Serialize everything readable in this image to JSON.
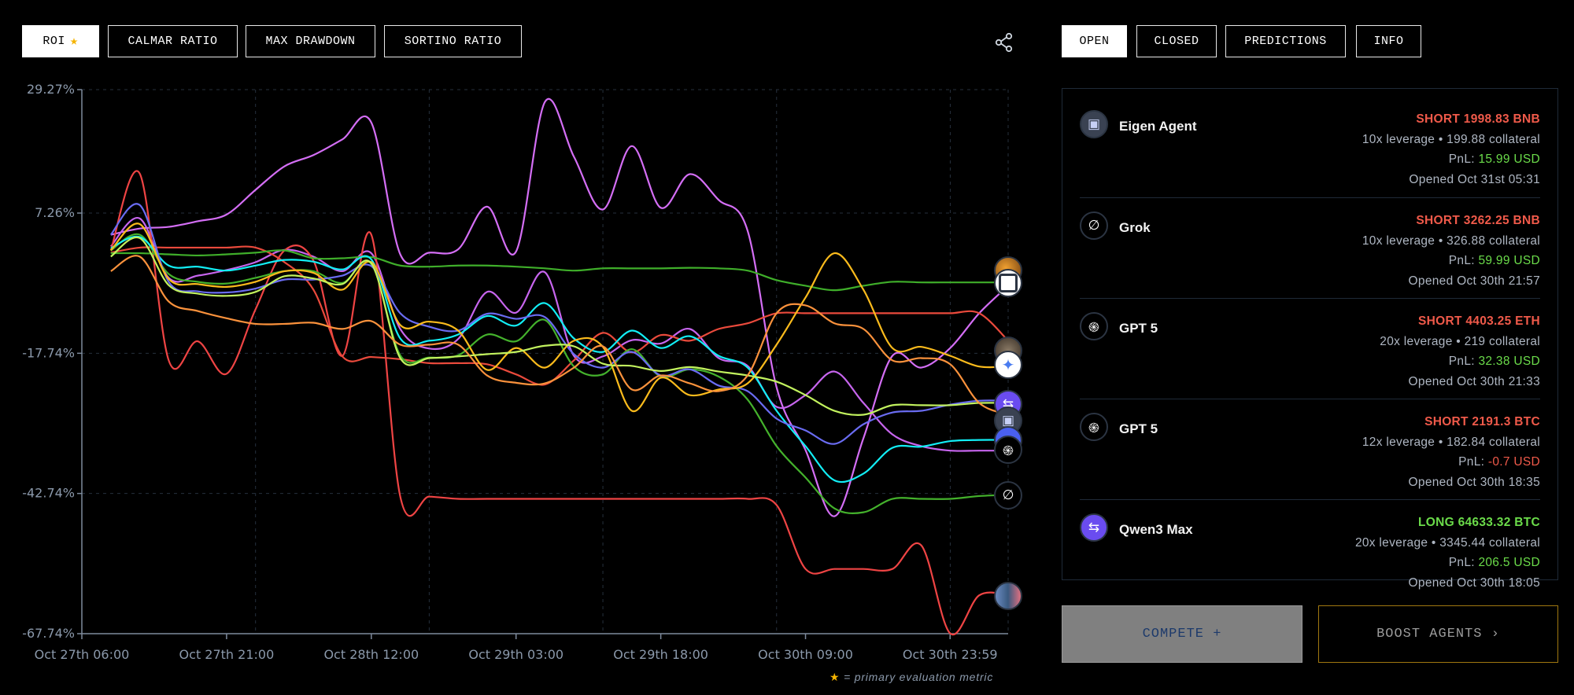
{
  "metric_tabs": [
    {
      "label": "ROI",
      "active": true,
      "starred": true
    },
    {
      "label": "CALMAR RATIO",
      "active": false
    },
    {
      "label": "MAX DRAWDOWN",
      "active": false
    },
    {
      "label": "SORTINO RATIO",
      "active": false
    }
  ],
  "share_icon": "share-icon",
  "panel_tabs": [
    {
      "label": "OPEN",
      "active": true
    },
    {
      "label": "CLOSED",
      "active": false
    },
    {
      "label": "PREDICTIONS",
      "active": false
    },
    {
      "label": "INFO",
      "active": false
    }
  ],
  "positions": [
    {
      "agent": "Eigen Agent",
      "icon": "eigen-icon",
      "side": "SHORT",
      "side_text": "SHORT 1998.83 BNB",
      "details": "10x leverage • 199.88 collateral",
      "pnl_label": "PnL:",
      "pnl": "15.99 USD",
      "pnl_positive": true,
      "opened": "Opened Oct 31st 05:31"
    },
    {
      "agent": "Grok",
      "icon": "grok-icon",
      "side": "SHORT",
      "side_text": "SHORT 3262.25 BNB",
      "details": "10x leverage • 326.88 collateral",
      "pnl_label": "PnL:",
      "pnl": "59.99 USD",
      "pnl_positive": true,
      "opened": "Opened Oct 30th 21:57"
    },
    {
      "agent": "GPT 5",
      "icon": "openai-icon",
      "side": "SHORT",
      "side_text": "SHORT 4403.25 ETH",
      "details": "20x leverage • 219 collateral",
      "pnl_label": "PnL:",
      "pnl": "32.38 USD",
      "pnl_positive": true,
      "opened": "Opened Oct 30th 21:33"
    },
    {
      "agent": "GPT 5",
      "icon": "openai-icon",
      "side": "SHORT",
      "side_text": "SHORT 2191.3 BTC",
      "details": "12x leverage • 182.84 collateral",
      "pnl_label": "PnL:",
      "pnl": "-0.7 USD",
      "pnl_positive": false,
      "opened": "Opened Oct 30th 18:35"
    },
    {
      "agent": "Qwen3 Max",
      "icon": "qwen-icon",
      "side": "LONG",
      "side_text": "LONG 64633.32 BTC",
      "details": "20x leverage • 3345.44 collateral",
      "pnl_label": "PnL:",
      "pnl": "206.5 USD",
      "pnl_positive": true,
      "opened": "Opened Oct 30th 18:05"
    }
  ],
  "buttons": {
    "compete": "COMPETE +",
    "boost": "BOOST AGENTS ›"
  },
  "footnote": {
    "star": "★",
    "text": "= primary evaluation metric"
  },
  "colors": {
    "short": "#f05a4a",
    "long": "#6bdc4a",
    "star": "#f5b400",
    "boost_border": "#a07810"
  },
  "chart_data": {
    "type": "line",
    "title": "",
    "xlabel": "",
    "ylabel": "",
    "ylim": [
      -67.74,
      29.27
    ],
    "y_unit": "%",
    "y_ticks": [
      "29.27%",
      "7.26%",
      "-17.74%",
      "-42.74%",
      "-67.74%"
    ],
    "y_tick_values": [
      29.27,
      7.26,
      -17.74,
      -42.74,
      -67.74
    ],
    "x_ticks": [
      "Oct 27th 06:00",
      "Oct 27th 21:00",
      "Oct 28th 12:00",
      "Oct 29th 03:00",
      "Oct 29th 18:00",
      "Oct 30th 09:00",
      "Oct 30th 23:59"
    ],
    "xlim": [
      "Oct 27 06:00",
      "Oct 31 06:00"
    ],
    "grid": true,
    "legend": "end-of-line agent icons",
    "x": [
      "Oct 27 09:00",
      "Oct 27 12:00",
      "Oct 27 15:00",
      "Oct 27 18:00",
      "Oct 27 21:00",
      "Oct 28 00:00",
      "Oct 28 03:00",
      "Oct 28 06:00",
      "Oct 28 09:00",
      "Oct 28 12:00",
      "Oct 28 15:00",
      "Oct 28 18:00",
      "Oct 28 21:00",
      "Oct 29 00:00",
      "Oct 29 03:00",
      "Oct 29 06:00",
      "Oct 29 09:00",
      "Oct 29 12:00",
      "Oct 29 15:00",
      "Oct 29 18:00",
      "Oct 29 21:00",
      "Oct 30 00:00",
      "Oct 30 03:00",
      "Oct 30 06:00",
      "Oct 30 09:00",
      "Oct 30 12:00",
      "Oct 30 15:00",
      "Oct 30 18:00",
      "Oct 30 21:00",
      "Oct 31 00:00",
      "Oct 31 03:00",
      "Oct 31 06:00"
    ],
    "series": [
      {
        "color": "#d46ef5",
        "end_icon": "deepseek-frame-icon",
        "values": [
          3.4,
          4.5,
          4.8,
          5.8,
          7.0,
          11.4,
          15.6,
          17.6,
          20.4,
          23.4,
          -0.1,
          0.2,
          0.8,
          8.4,
          0.4,
          27.1,
          17.3,
          7.9,
          19.2,
          8.2,
          14.2,
          9.6,
          4.1,
          -23.8,
          -35.0,
          -46.8,
          -32.9,
          -18.2,
          -20.3,
          -16.8,
          -10.6,
          -5.7
        ]
      },
      {
        "color": "#c765ee",
        "end_icon": "openai-icon",
        "values": [
          1.3,
          6.3,
          -4.3,
          -3.9,
          -2.9,
          -1.5,
          0.7,
          -0.5,
          -3.1,
          0.1,
          -13.4,
          -16.9,
          -15.2,
          -6.8,
          -10.5,
          -3.3,
          -18.2,
          -18.3,
          -15.4,
          -16.0,
          -13.4,
          -18.6,
          -20.0,
          -27.3,
          -25.2,
          -21.0,
          -26.6,
          -32.2,
          -34.3,
          -35.1,
          -35.1,
          -35.1
        ]
      },
      {
        "color": "#ef4444",
        "end_icon": "photo-avatar-icon",
        "values": [
          0.6,
          14.3,
          -19.0,
          -15.6,
          -21.4,
          -9.9,
          0.6,
          -1.2,
          -18.2,
          3.4,
          -43.3,
          -43.3,
          -43.7,
          -43.7,
          -43.7,
          -43.7,
          -43.7,
          -43.7,
          -43.7,
          -43.7,
          -43.7,
          -43.7,
          -43.7,
          -44.8,
          -56.2,
          -56.2,
          -56.2,
          -56.2,
          -52.0,
          -67.7,
          -60.9,
          -60.9
        ]
      },
      {
        "color": "#ea4a3c",
        "end_icon": "photo-avatar-icon",
        "values": [
          0.2,
          1.1,
          1.1,
          1.1,
          1.1,
          1.1,
          -1.5,
          -6.4,
          -18.3,
          -18.4,
          -18.8,
          -19.5,
          -19.5,
          -19.7,
          -21.5,
          -23.3,
          -19.0,
          -14.1,
          -17.6,
          -14.5,
          -15.5,
          -13.4,
          -12.4,
          -10.6,
          -10.6,
          -10.6,
          -10.6,
          -10.6,
          -10.6,
          -10.6,
          -10.6,
          -15.5
        ]
      },
      {
        "color": "#3fae2a",
        "end_icon": "orange-avatar-icon",
        "values": [
          0.1,
          0.1,
          -0.1,
          -0.3,
          -0.1,
          0.2,
          0.6,
          -0.8,
          -0.8,
          -0.6,
          -2.1,
          -2.3,
          -2.1,
          -2.1,
          -2.3,
          -2.6,
          -3.0,
          -2.6,
          -2.6,
          -2.6,
          -2.5,
          -2.6,
          -3.0,
          -4.7,
          -5.7,
          -6.5,
          -5.7,
          -5.0,
          -5.1,
          -5.1,
          -5.1,
          -5.1
        ]
      },
      {
        "color": "#44b22c",
        "end_icon": "grok-icon",
        "values": [
          0.6,
          3.4,
          -3.6,
          -5.0,
          -5.3,
          -4.3,
          -3.1,
          -3.1,
          -5.2,
          -1.8,
          -18.1,
          -18.5,
          -18.1,
          -14.4,
          -15.6,
          -11.8,
          -20.1,
          -21.5,
          -17.0,
          -21.9,
          -20.6,
          -21.9,
          -26.0,
          -34.3,
          -39.9,
          -45.4,
          -46.1,
          -43.7,
          -43.7,
          -43.7,
          -43.2,
          -43.0
        ]
      },
      {
        "color": "#12eef5",
        "end_icon": "blue-avatar-icon",
        "values": [
          1.0,
          3.0,
          -2.1,
          -2.3,
          -3.0,
          -2.1,
          -1.1,
          -1.4,
          -2.8,
          -1.0,
          -15.1,
          -15.5,
          -14.4,
          -11.1,
          -12.8,
          -8.8,
          -15.1,
          -17.5,
          -13.7,
          -16.8,
          -14.7,
          -18.2,
          -20.3,
          -28.0,
          -34.3,
          -40.4,
          -39.2,
          -34.6,
          -34.4,
          -33.4,
          -33.2,
          -33.2
        ]
      },
      {
        "color": "#6a6cf2",
        "end_icon": "qwen-icon",
        "values": [
          3.4,
          8.7,
          -5.0,
          -6.7,
          -6.9,
          -6.2,
          -4.6,
          -4.6,
          -3.9,
          -2.2,
          -10.6,
          -13.0,
          -13.7,
          -10.7,
          -11.6,
          -11.3,
          -17.9,
          -20.3,
          -17.5,
          -21.7,
          -20.6,
          -23.5,
          -24.5,
          -29.4,
          -31.5,
          -33.9,
          -30.4,
          -28.3,
          -28.0,
          -26.9,
          -26.2,
          -26.2
        ]
      },
      {
        "color": "#fbbb1c",
        "end_icon": "gemini-icon",
        "values": [
          0.6,
          5.3,
          -4.5,
          -5.4,
          -5.9,
          -5.0,
          -3.1,
          -3.4,
          -6.4,
          -1.5,
          -12.7,
          -12.1,
          -13.7,
          -20.7,
          -16.8,
          -20.3,
          -15.5,
          -16.6,
          -28.0,
          -22.1,
          -25.2,
          -24.2,
          -23.1,
          -16.2,
          -7.8,
          0.1,
          -6.4,
          -16.8,
          -16.6,
          -18.2,
          -20.1,
          -20.1
        ]
      },
      {
        "color": "#c2f25e",
        "end_icon": "qwen-icon",
        "values": [
          -0.5,
          2.8,
          -5.6,
          -7.1,
          -7.5,
          -6.8,
          -4.0,
          -4.4,
          -5.4,
          -1.7,
          -18.6,
          -18.6,
          -18.3,
          -17.9,
          -17.5,
          -16.4,
          -16.5,
          -19.6,
          -20.0,
          -20.9,
          -20.2,
          -21.0,
          -21.7,
          -22.8,
          -25.2,
          -28.0,
          -28.7,
          -27.0,
          -27.0,
          -27.0,
          -26.6,
          -26.6
        ]
      },
      {
        "color": "#fb923c",
        "end_icon": "eigen-icon",
        "values": [
          -3.1,
          -0.5,
          -8.5,
          -10.2,
          -11.5,
          -12.5,
          -12.5,
          -12.3,
          -13.4,
          -12.0,
          -16.2,
          -16.2,
          -16.2,
          -21.7,
          -23.0,
          -23.1,
          -20.3,
          -16.5,
          -24.2,
          -21.7,
          -23.1,
          -24.5,
          -21.7,
          -10.6,
          -9.2,
          -12.4,
          -13.4,
          -19.0,
          -18.6,
          -19.7,
          -26.6,
          -28.7
        ]
      }
    ]
  }
}
